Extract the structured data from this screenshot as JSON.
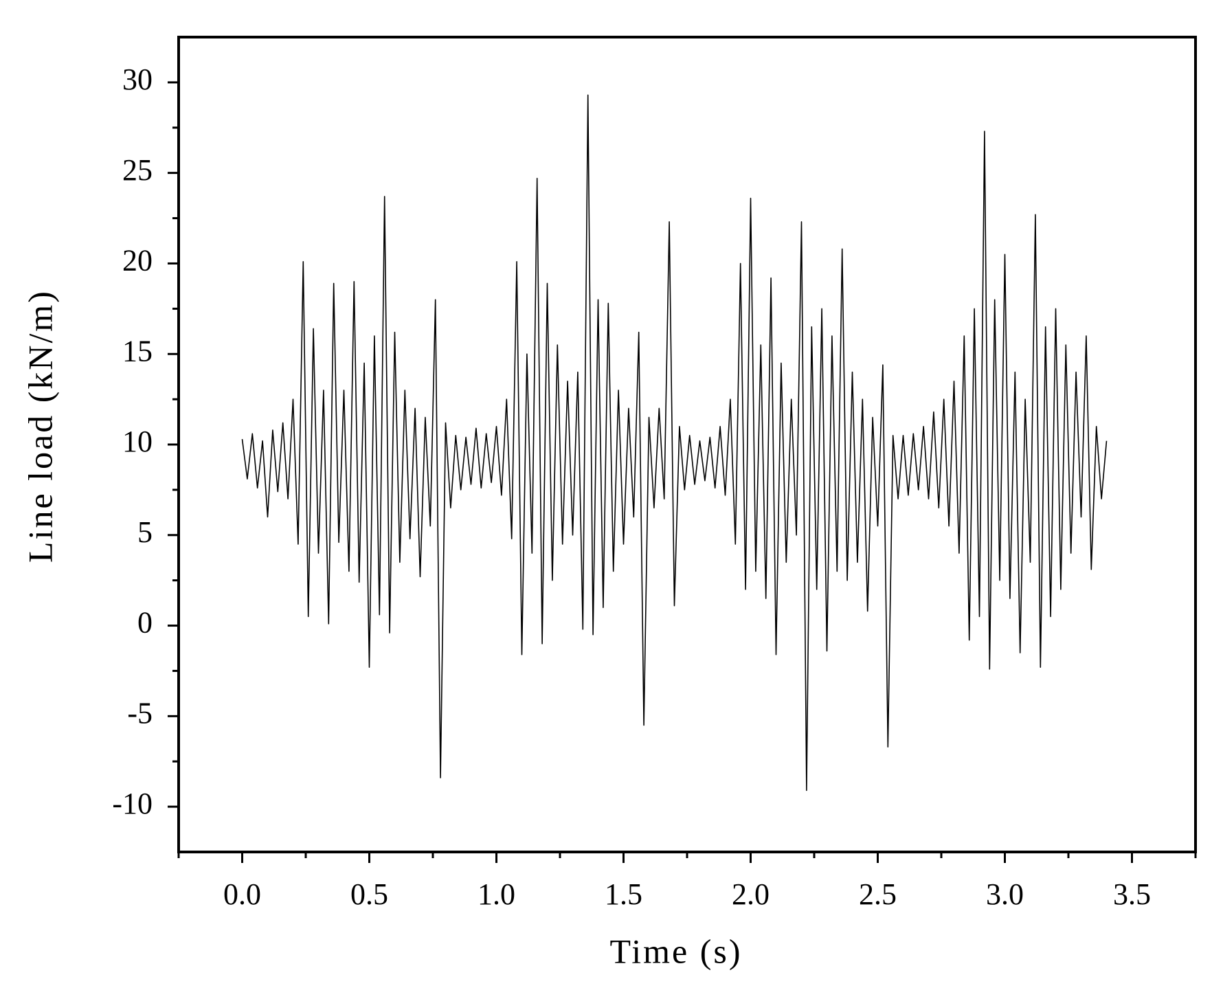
{
  "chart_data": {
    "type": "line",
    "xlabel": "Time (s)",
    "ylabel": "Line load (kN/m)",
    "color": "#000000",
    "xlim": [
      -0.25,
      3.75
    ],
    "ylim": [
      -12.5,
      32.5
    ],
    "xticks": [
      {
        "value": 0,
        "label": "0.0"
      },
      0.5,
      {
        "value": 1,
        "label": "1.0"
      },
      1.5,
      {
        "value": 2,
        "label": "2.0"
      },
      2.5,
      {
        "value": 3,
        "label": "3.0"
      },
      3.5
    ],
    "yticks": [
      -10,
      -5,
      0,
      5,
      10,
      15,
      20,
      25,
      30
    ],
    "xminorticks": [
      -0.25,
      0.25,
      0.75,
      1.25,
      1.75,
      2.25,
      2.75,
      3.25,
      3.75
    ],
    "yminorticks": [
      -7.5,
      -2.5,
      2.5,
      7.5,
      12.5,
      17.5,
      22.5,
      27.5
    ],
    "x": [
      0,
      0.02,
      0.04,
      0.06,
      0.08,
      0.1,
      0.12,
      0.14,
      0.16,
      0.18,
      0.2,
      0.22,
      0.24,
      0.26,
      0.28,
      0.3,
      0.32,
      0.34,
      0.36,
      0.38,
      0.4,
      0.42,
      0.44,
      0.46,
      0.48,
      0.5,
      0.52,
      0.54,
      0.56,
      0.58,
      0.6,
      0.62,
      0.64,
      0.66,
      0.68,
      0.7,
      0.72,
      0.74,
      0.76,
      0.78,
      0.8,
      0.82,
      0.84,
      0.86,
      0.88,
      0.9,
      0.92,
      0.94,
      0.96,
      0.98,
      1,
      1.02,
      1.04,
      1.06,
      1.08,
      1.1,
      1.12,
      1.14,
      1.16,
      1.18,
      1.2,
      1.22,
      1.24,
      1.26,
      1.28,
      1.3,
      1.32,
      1.34,
      1.36,
      1.38,
      1.4,
      1.42,
      1.44,
      1.46,
      1.48,
      1.5,
      1.52,
      1.54,
      1.56,
      1.58,
      1.6,
      1.62,
      1.64,
      1.66,
      1.68,
      1.7,
      1.72,
      1.74,
      1.76,
      1.78,
      1.8,
      1.82,
      1.84,
      1.86,
      1.88,
      1.9,
      1.92,
      1.94,
      1.96,
      1.98,
      2,
      2.02,
      2.04,
      2.06,
      2.08,
      2.1,
      2.12,
      2.14,
      2.16,
      2.18,
      2.2,
      2.22,
      2.24,
      2.26,
      2.28,
      2.3,
      2.32,
      2.34,
      2.36,
      2.38,
      2.4,
      2.42,
      2.44,
      2.46,
      2.48,
      2.5,
      2.52,
      2.54,
      2.56,
      2.58,
      2.6,
      2.62,
      2.64,
      2.66,
      2.68,
      2.7,
      2.72,
      2.74,
      2.76,
      2.78,
      2.8,
      2.82,
      2.84,
      2.86,
      2.88,
      2.9,
      2.92,
      2.94,
      2.96,
      2.98,
      3,
      3.02,
      3.04,
      3.06,
      3.08,
      3.1,
      3.12,
      3.14,
      3.16,
      3.18,
      3.2,
      3.22,
      3.24,
      3.26,
      3.28,
      3.3,
      3.32,
      3.34,
      3.36,
      3.38,
      3.4
    ],
    "values": [
      10.3,
      8.1,
      10.6,
      7.6,
      10.2,
      6.0,
      10.8,
      7.4,
      11.2,
      7.0,
      12.5,
      4.5,
      20.1,
      0.5,
      16.4,
      4.0,
      13.0,
      0.1,
      18.9,
      4.6,
      13.0,
      3.0,
      19.0,
      2.4,
      14.5,
      -2.3,
      16.0,
      0.6,
      23.7,
      -0.4,
      16.2,
      3.5,
      13.0,
      4.8,
      12.0,
      2.7,
      11.5,
      5.5,
      18.0,
      -8.4,
      11.2,
      6.5,
      10.5,
      7.5,
      10.4,
      7.8,
      10.9,
      7.6,
      10.6,
      7.9,
      11.0,
      7.2,
      12.5,
      4.8,
      20.1,
      -1.6,
      15.0,
      4.0,
      24.7,
      -1.0,
      18.9,
      2.5,
      15.5,
      4.5,
      13.5,
      5.0,
      14.0,
      -0.2,
      29.3,
      -0.5,
      18.0,
      1.0,
      17.8,
      3.0,
      13.0,
      4.5,
      12.0,
      6.0,
      16.2,
      -5.5,
      11.5,
      6.5,
      12.0,
      7.0,
      22.3,
      1.1,
      11.0,
      7.5,
      10.5,
      7.8,
      10.2,
      8.0,
      10.4,
      7.6,
      11.0,
      7.2,
      12.5,
      4.5,
      20.0,
      2.0,
      23.6,
      3.0,
      15.5,
      1.5,
      19.2,
      -1.6,
      14.5,
      3.5,
      12.5,
      5.0,
      22.3,
      -9.1,
      16.5,
      2.0,
      17.5,
      -1.4,
      16.0,
      3.0,
      20.8,
      2.5,
      14.0,
      3.5,
      12.5,
      0.8,
      11.5,
      5.5,
      14.4,
      -6.7,
      10.5,
      7.0,
      10.5,
      7.2,
      10.6,
      7.5,
      11.0,
      7.0,
      11.8,
      6.5,
      12.5,
      5.5,
      13.5,
      4.0,
      16.0,
      -0.8,
      17.5,
      0.5,
      27.3,
      -2.4,
      18.0,
      2.5,
      20.5,
      1.5,
      14.0,
      -1.5,
      12.5,
      3.5,
      22.7,
      -2.3,
      16.5,
      0.5,
      17.5,
      2.0,
      15.5,
      4.0,
      14.0,
      6.0,
      16.0,
      3.1,
      11.0,
      7.0,
      10.2
    ]
  }
}
